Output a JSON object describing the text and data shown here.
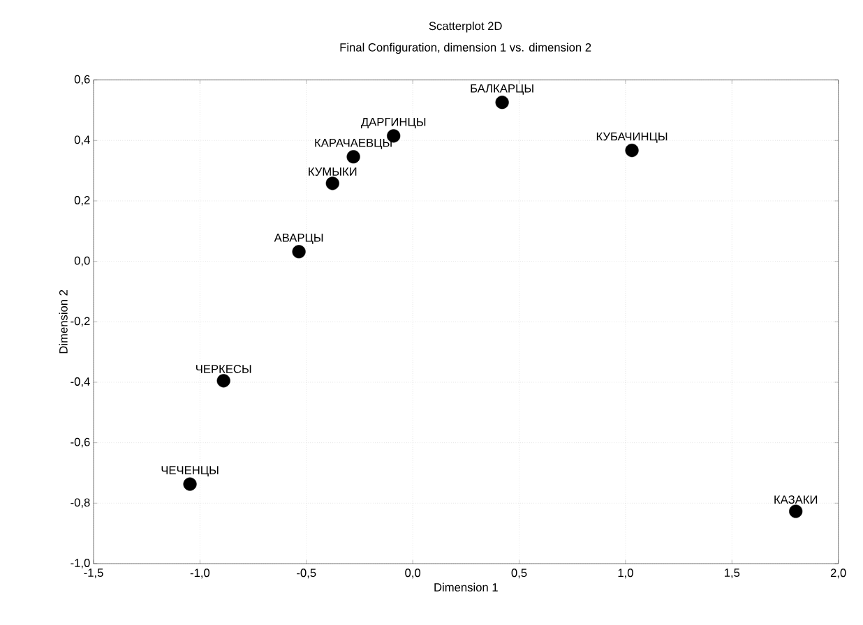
{
  "chart_data": {
    "type": "scatter",
    "title": "Scatterplot 2D",
    "subtitle": "Final Configuration, dimension 1  vs. dimension 2",
    "xlabel": "Dimension 1",
    "ylabel": "Dimension 2",
    "x": [
      -1.047,
      -0.889,
      -0.535,
      -0.377,
      -0.279,
      -0.09,
      0.42,
      1.03,
      1.8
    ],
    "values": [
      -0.737,
      -0.395,
      0.032,
      0.258,
      0.346,
      0.415,
      0.526,
      0.367,
      -0.827
    ],
    "color": "#000000",
    "marker": "circle",
    "grid": true,
    "xlim": [
      -1.5,
      2.0
    ],
    "ylim": [
      -1.0,
      0.6
    ],
    "xticks": [
      {
        "value": -1.5,
        "label": "-1,5"
      },
      {
        "value": -1.0,
        "label": "-1,0"
      },
      {
        "value": -0.5,
        "label": "-0,5"
      },
      {
        "value": 0.0,
        "label": "0,0"
      },
      {
        "value": 0.5,
        "label": "0,5"
      },
      {
        "value": 1.0,
        "label": "1,0"
      },
      {
        "value": 1.5,
        "label": "1,5"
      },
      {
        "value": 2.0,
        "label": "2,0"
      }
    ],
    "yticks": [
      {
        "value": -1.0,
        "label": "-1,0"
      },
      {
        "value": -0.8,
        "label": "-0,8"
      },
      {
        "value": -0.6,
        "label": "-0,6"
      },
      {
        "value": -0.4,
        "label": "-0,4"
      },
      {
        "value": -0.2,
        "label": "-0,2"
      },
      {
        "value": 0.0,
        "label": "0,0"
      },
      {
        "value": 0.2,
        "label": "0,2"
      },
      {
        "value": 0.4,
        "label": "0,4"
      },
      {
        "value": 0.6,
        "label": "0,6"
      }
    ],
    "annotations": [
      {
        "text": "ЧЕЧЕНЦЫ",
        "x": -1.047,
        "y": -0.737
      },
      {
        "text": "ЧЕРКЕСЫ",
        "x": -0.889,
        "y": -0.395
      },
      {
        "text": "АВАРЦЫ",
        "x": -0.535,
        "y": 0.032
      },
      {
        "text": "КУМЫКИ",
        "x": -0.377,
        "y": 0.258
      },
      {
        "text": "КАРАЧАЕВЦЫ",
        "x": -0.279,
        "y": 0.346
      },
      {
        "text": "ДАРГИНЦЫ",
        "x": -0.09,
        "y": 0.415
      },
      {
        "text": "БАЛКАРЦЫ",
        "x": 0.42,
        "y": 0.526
      },
      {
        "text": "КУБАЧИНЦЫ",
        "x": 1.03,
        "y": 0.367
      },
      {
        "text": "КАЗАКИ",
        "x": 1.8,
        "y": -0.827
      }
    ]
  }
}
